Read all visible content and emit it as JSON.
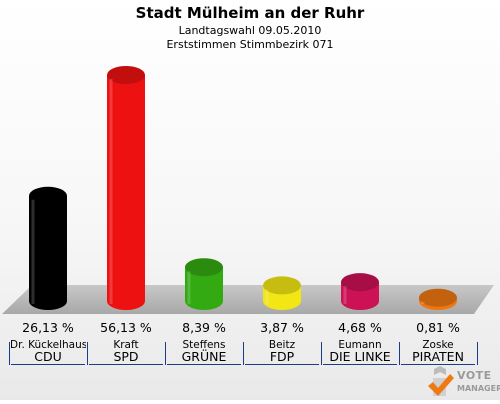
{
  "header": {
    "title": "Stadt Mülheim an der Ruhr",
    "subtitle1": "Landtagswahl 09.05.2010",
    "subtitle2": "Erststimmen Stimmbezirk 071"
  },
  "chart_data": {
    "type": "bar",
    "title": "Stadt Mülheim an der Ruhr",
    "subtitle": "Landtagswahl 09.05.2010 — Erststimmen Stimmbezirk 071",
    "categories": [
      "CDU",
      "SPD",
      "GRÜNE",
      "FDP",
      "DIE LINKE",
      "PIRATEN"
    ],
    "candidates": [
      "Dr. Kückelhaus",
      "Kraft",
      "Steffens",
      "Beitz",
      "Eumann",
      "Zoske"
    ],
    "values": [
      26.13,
      56.13,
      8.39,
      3.87,
      4.68,
      0.81
    ],
    "value_labels": [
      "26,13 %",
      "56,13 %",
      "8,39 %",
      "3,87 %",
      "4,68 %",
      "0,81 %"
    ],
    "colors": [
      "#000000",
      "#ee1111",
      "#33aa11",
      "#f2e614",
      "#cc1155",
      "#ee7711"
    ],
    "unit": "%",
    "ylim": [
      0,
      56.13
    ],
    "grid": false,
    "legend": "none"
  },
  "logo": {
    "line1": "VOTE",
    "line2": "MANAGER"
  }
}
